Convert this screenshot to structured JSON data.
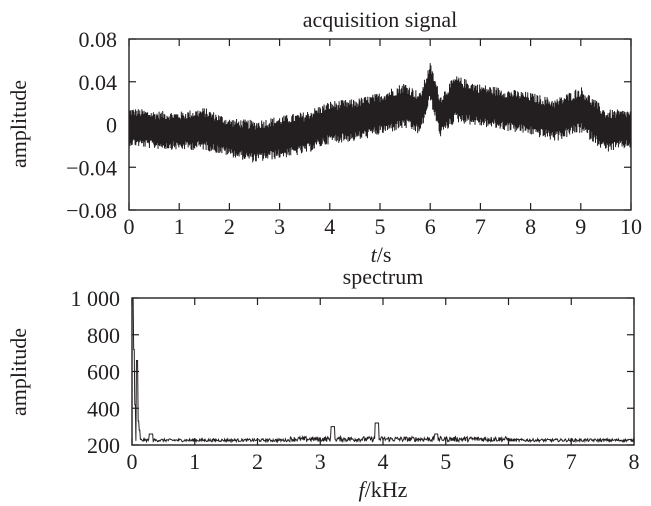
{
  "chart_data": [
    {
      "type": "line",
      "title": "acquisition signal",
      "xlabel_italic": "t",
      "xlabel_unit": "/s",
      "ylabel": "amplitude",
      "xlim": [
        0,
        10
      ],
      "ylim": [
        -0.08,
        0.08
      ],
      "x_ticks": [
        0,
        1,
        2,
        3,
        4,
        5,
        6,
        7,
        8,
        9,
        10
      ],
      "x_tick_labels": [
        "0",
        "1",
        "2",
        "3",
        "4",
        "5",
        "6",
        "7",
        "8",
        "9",
        "10"
      ],
      "y_ticks": [
        0.08,
        0.04,
        0,
        -0.04,
        -0.08
      ],
      "y_tick_labels": [
        "0.08",
        "0.04",
        "0",
        "−0.04",
        "−0.08"
      ],
      "grid": false,
      "line_color": "#231f20",
      "series": [
        {
          "x": [
            0,
            0.5,
            1,
            1.5,
            2,
            2.5,
            3,
            3.5,
            4,
            4.5,
            5,
            5.5,
            5.8,
            6,
            6.2,
            6.5,
            7,
            7.5,
            8,
            8.5,
            9,
            9.5,
            10
          ],
          "envelope_center": [
            -0.002,
            -0.005,
            -0.006,
            -0.004,
            -0.012,
            -0.016,
            -0.012,
            -0.008,
            0.002,
            0.004,
            0.01,
            0.018,
            0.01,
            0.04,
            0.008,
            0.024,
            0.018,
            0.014,
            0.01,
            0.004,
            0.014,
            -0.006,
            -0.004
          ],
          "envelope_halfwidth": [
            0.018,
            0.018,
            0.018,
            0.02,
            0.018,
            0.02,
            0.02,
            0.02,
            0.02,
            0.02,
            0.02,
            0.022,
            0.02,
            0.018,
            0.02,
            0.022,
            0.02,
            0.02,
            0.02,
            0.02,
            0.022,
            0.02,
            0.018
          ]
        }
      ]
    },
    {
      "type": "line",
      "title": "spectrum",
      "xlabel_italic": "f",
      "xlabel_unit": "/kHz",
      "ylabel": "amplitude",
      "xlim": [
        0,
        8
      ],
      "ylim": [
        200,
        1000
      ],
      "x_ticks": [
        0,
        1,
        2,
        3,
        4,
        5,
        6,
        7,
        8
      ],
      "x_tick_labels": [
        "0",
        "1",
        "2",
        "3",
        "4",
        "5",
        "6",
        "7",
        "8"
      ],
      "y_ticks": [
        1000,
        800,
        600,
        400,
        200
      ],
      "y_tick_labels": [
        "1 000",
        "800",
        "600",
        "400",
        "200"
      ],
      "grid": false,
      "line_color": "#231f20",
      "series": [
        {
          "peaks_x": [
            0.01,
            0.03,
            0.05,
            0.08,
            0.1,
            0.12,
            0.3,
            3.2,
            3.9,
            4.85
          ],
          "peaks_y": [
            1000,
            720,
            420,
            660,
            330,
            280,
            260,
            300,
            320,
            260
          ],
          "baseline": 230
        }
      ]
    }
  ]
}
